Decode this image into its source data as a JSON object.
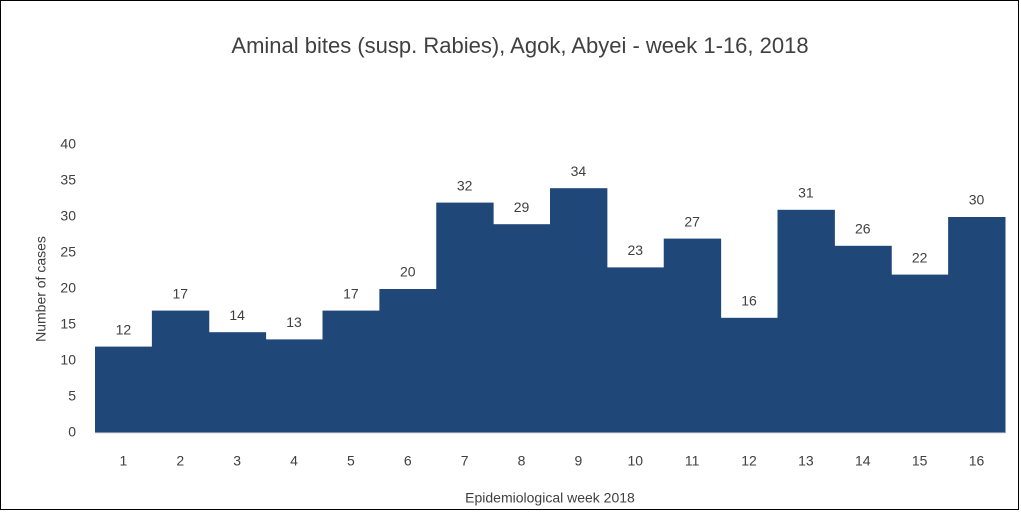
{
  "chart_data": {
    "type": "bar",
    "title": "Aminal bites (susp. Rabies), Agok, Abyei - week 1-16, 2018",
    "x_label": "Epidemiological week 2018",
    "y_label": "Number of cases",
    "categories": [
      "1",
      "2",
      "3",
      "4",
      "5",
      "6",
      "7",
      "8",
      "9",
      "10",
      "11",
      "12",
      "13",
      "14",
      "15",
      "16"
    ],
    "values": [
      12,
      17,
      14,
      13,
      17,
      20,
      32,
      29,
      34,
      23,
      27,
      16,
      31,
      26,
      22,
      30
    ],
    "color": "#1f4778",
    "ylim": [
      0,
      40
    ],
    "yticks": [
      0,
      5,
      10,
      15,
      20,
      25,
      30,
      35,
      40
    ],
    "grid": false
  }
}
